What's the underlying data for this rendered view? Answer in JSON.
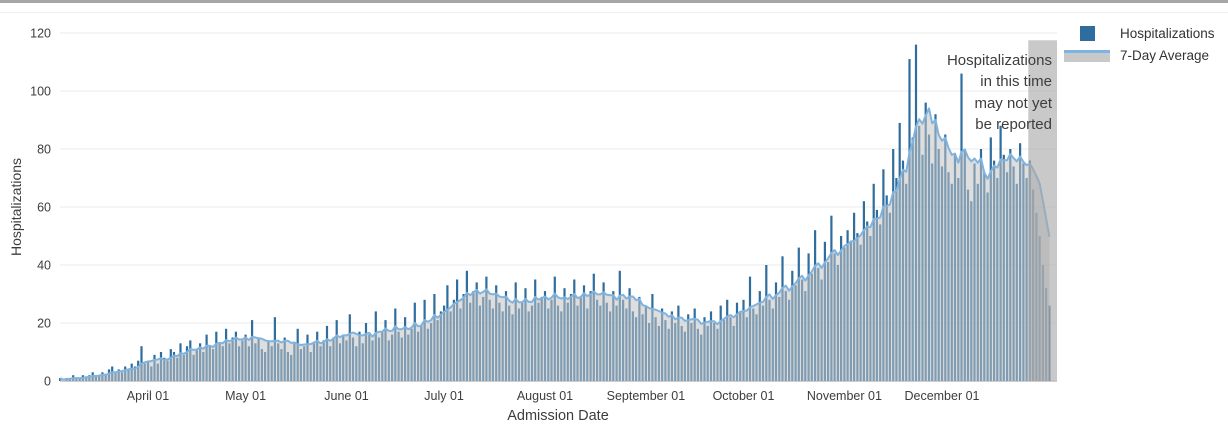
{
  "chart_data": {
    "type": "bar",
    "title": "",
    "xlabel": "Admission Date",
    "ylabel": "Hospitalizations",
    "ylim": [
      0,
      120
    ],
    "yticks": [
      0,
      20,
      40,
      60,
      80,
      100,
      120
    ],
    "grid": "horizontal",
    "legend_position": "top-right",
    "x_unit": "day",
    "x_ticks": [
      {
        "label": "April 01",
        "day_index": 27
      },
      {
        "label": "May 01",
        "day_index": 57
      },
      {
        "label": "June 01",
        "day_index": 88
      },
      {
        "label": "July 01",
        "day_index": 118
      },
      {
        "label": "August 01",
        "day_index": 149
      },
      {
        "label": "September 01",
        "day_index": 180
      },
      {
        "label": "October 01",
        "day_index": 210
      },
      {
        "label": "November 01",
        "day_index": 241
      },
      {
        "label": "December 01",
        "day_index": 271
      }
    ],
    "series": [
      {
        "name": "Hospitalizations",
        "type": "bar",
        "color": "#2e6d9e",
        "values": [
          1,
          0,
          1,
          1,
          2,
          1,
          1,
          2,
          1,
          2,
          3,
          2,
          2,
          3,
          2,
          4,
          5,
          3,
          4,
          3,
          5,
          4,
          6,
          5,
          7,
          12,
          6,
          7,
          5,
          9,
          6,
          10,
          8,
          7,
          11,
          10,
          8,
          13,
          9,
          12,
          14,
          9,
          11,
          13,
          10,
          16,
          12,
          11,
          17,
          13,
          12,
          18,
          13,
          15,
          17,
          12,
          14,
          16,
          12,
          21,
          13,
          15,
          11,
          10,
          14,
          12,
          22,
          13,
          11,
          15,
          10,
          9,
          13,
          18,
          11,
          12,
          16,
          10,
          13,
          17,
          12,
          14,
          19,
          12,
          15,
          21,
          13,
          16,
          14,
          23,
          15,
          12,
          17,
          13,
          20,
          16,
          14,
          24,
          15,
          17,
          21,
          14,
          16,
          25,
          17,
          15,
          22,
          16,
          18,
          27,
          17,
          19,
          28,
          18,
          20,
          30,
          21,
          24,
          26,
          33,
          24,
          28,
          35,
          25,
          30,
          38,
          27,
          31,
          34,
          26,
          29,
          36,
          28,
          25,
          33,
          27,
          24,
          31,
          26,
          23,
          34,
          25,
          27,
          32,
          24,
          26,
          35,
          27,
          29,
          31,
          25,
          28,
          36,
          26,
          24,
          32,
          27,
          30,
          35,
          26,
          29,
          33,
          25,
          31,
          37,
          28,
          26,
          34,
          27,
          24,
          31,
          26,
          38,
          28,
          25,
          32,
          24,
          22,
          29,
          23,
          26,
          20,
          30,
          22,
          19,
          25,
          21,
          18,
          24,
          20,
          26,
          19,
          17,
          23,
          20,
          25,
          18,
          16,
          22,
          19,
          24,
          20,
          18,
          26,
          21,
          28,
          22,
          19,
          27,
          24,
          28,
          22,
          36,
          25,
          23,
          31,
          26,
          40,
          28,
          25,
          34,
          29,
          43,
          31,
          28,
          38,
          33,
          46,
          35,
          31,
          44,
          37,
          52,
          39,
          35,
          48,
          41,
          57,
          44,
          40,
          50,
          46,
          52,
          48,
          58,
          51,
          47,
          62,
          55,
          50,
          68,
          59,
          54,
          73,
          64,
          58,
          80,
          70,
          89,
          76,
          68,
          111,
          84,
          116,
          88,
          78,
          96,
          85,
          75,
          92,
          80,
          74,
          85,
          72,
          68,
          78,
          70,
          106,
          80,
          66,
          62,
          75,
          68,
          80,
          72,
          65,
          84,
          76,
          70,
          88,
          78,
          72,
          80,
          74,
          68,
          82,
          75,
          70,
          76,
          66,
          58,
          50,
          40,
          32,
          26
        ]
      },
      {
        "name": "7-Day Average",
        "type": "line",
        "line_color": "#7fb3e0",
        "area_color": "#c2c2c2",
        "derivation": "trailing 7-day mean of Hospitalizations"
      }
    ],
    "unreported_region": {
      "last_n_days": 7,
      "color": "#a8a8a8",
      "annotation_text": "Hospitalizations\nin this time\nmay not yet\nbe reported"
    }
  }
}
